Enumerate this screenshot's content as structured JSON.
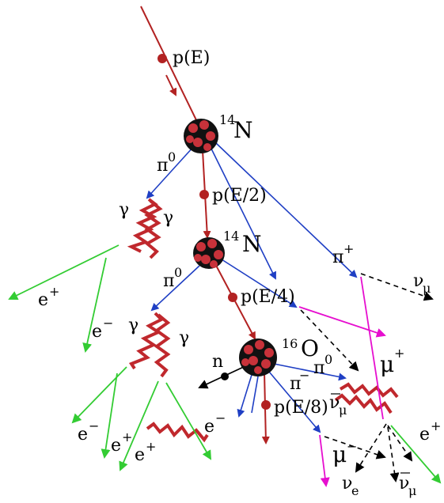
{
  "colors": {
    "proton": "#b22222",
    "pion0": "#1f3fc4",
    "pion_charged": "#1f3fc4",
    "electron": "#33cc33",
    "muon": "#e60fcf",
    "neutrino": "#000000",
    "gamma": "#c0282d",
    "nucleus_dark": "#111111",
    "nucleus_light": "#c8323a"
  },
  "labels": {
    "p_E": "p(E)",
    "n14_top_mass": "14",
    "n14_top_sym": "N",
    "pi0_1": "π",
    "pi0_1_sup": "0",
    "p_E2": "p(E/2)",
    "gamma_1a": "γ",
    "gamma_1b": "γ",
    "n14_mid_mass": "14",
    "n14_mid_sym": "N",
    "pi_plus": "π",
    "pi_plus_sup": "+",
    "nu_mu_1": "ν",
    "nu_mu_1_sub": "μ",
    "e_plus_1": "e",
    "e_plus_1_sup": "+",
    "e_minus_1": "e",
    "e_minus_1_sup": "−",
    "pi0_2": "π",
    "pi0_2_sup": "0",
    "p_E4": "p(E/4)",
    "gamma_2a": "γ",
    "gamma_2b": "γ",
    "mu_plus": "μ",
    "mu_plus_sup": "+",
    "o16_mass": "16",
    "o16_sym": "O",
    "n": "n",
    "pi0_3": "π",
    "pi0_3_sup": "0",
    "pi_minus": "π",
    "pi_minus_sup": "−",
    "p_E8": "p(E/8)",
    "nubar_mu": "ν",
    "nubar_mu_sub": "μ",
    "e_minus_2": "e",
    "e_minus_2_sup": "−",
    "e_plus_2": "e",
    "e_plus_2_sup": "+",
    "e_plus_3": "e",
    "e_plus_3_sup": "+",
    "e_minus_3": "e",
    "e_minus_3_sup": "−",
    "mu_minus": "μ",
    "mu_minus_sup": "−",
    "e_plus_4": "e",
    "e_plus_4_sup": "+",
    "nu_e": "ν",
    "nu_e_sub": "e",
    "nu_mu_2": "ν",
    "nu_mu_2_sub": "μ"
  }
}
